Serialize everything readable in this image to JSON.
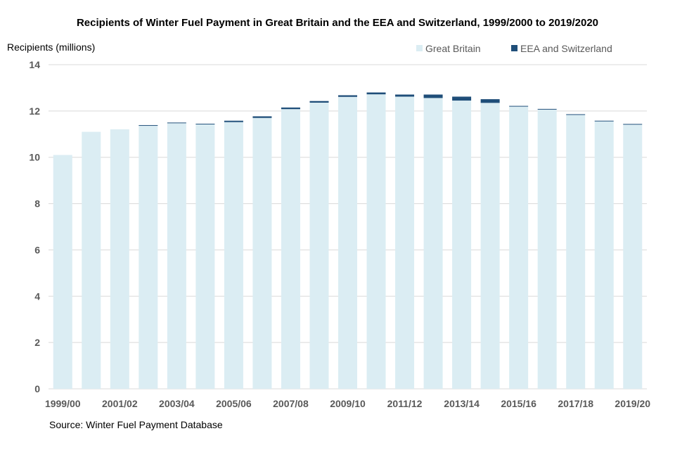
{
  "chart_data": {
    "type": "bar",
    "stacked": true,
    "title": "Recipients of Winter Fuel Payment in Great Britain and the EEA and Switzerland, 1999/2000 to 2019/2020",
    "ylabel": "Recipients (millions)",
    "xlabel": "",
    "ylim": [
      0,
      14
    ],
    "yticks": [
      0,
      2,
      4,
      6,
      8,
      10,
      12,
      14
    ],
    "grid": true,
    "legend_position": "top-right",
    "source": "Source: Winter Fuel Payment Database",
    "categories": [
      "1999/00",
      "2000/01",
      "2001/02",
      "2002/03",
      "2003/04",
      "2004/05",
      "2005/06",
      "2006/07",
      "2007/08",
      "2008/09",
      "2009/10",
      "2010/11",
      "2011/12",
      "2012/13",
      "2013/14",
      "2014/15",
      "2015/16",
      "2016/17",
      "2017/18",
      "2018/19",
      "2019/20"
    ],
    "xtick_labels": [
      "1999/00",
      "2001/02",
      "2003/04",
      "2005/06",
      "2007/08",
      "2009/10",
      "2011/12",
      "2013/14",
      "2015/16",
      "2017/18",
      "2019/20"
    ],
    "series": [
      {
        "name": "Great Britain",
        "color": "#dbedf3",
        "values": [
          10.1,
          11.1,
          11.21,
          11.36,
          11.47,
          11.42,
          11.52,
          11.7,
          12.08,
          12.36,
          12.61,
          12.72,
          12.62,
          12.56,
          12.45,
          12.35,
          12.19,
          12.06,
          11.83,
          11.55,
          11.41
        ]
      },
      {
        "name": "EEA and Switzerland",
        "color": "#1f4e79",
        "values": [
          0.0,
          0.0,
          0.0,
          0.03,
          0.03,
          0.03,
          0.06,
          0.07,
          0.07,
          0.07,
          0.07,
          0.08,
          0.09,
          0.15,
          0.17,
          0.16,
          0.03,
          0.03,
          0.03,
          0.03,
          0.03
        ]
      }
    ]
  }
}
